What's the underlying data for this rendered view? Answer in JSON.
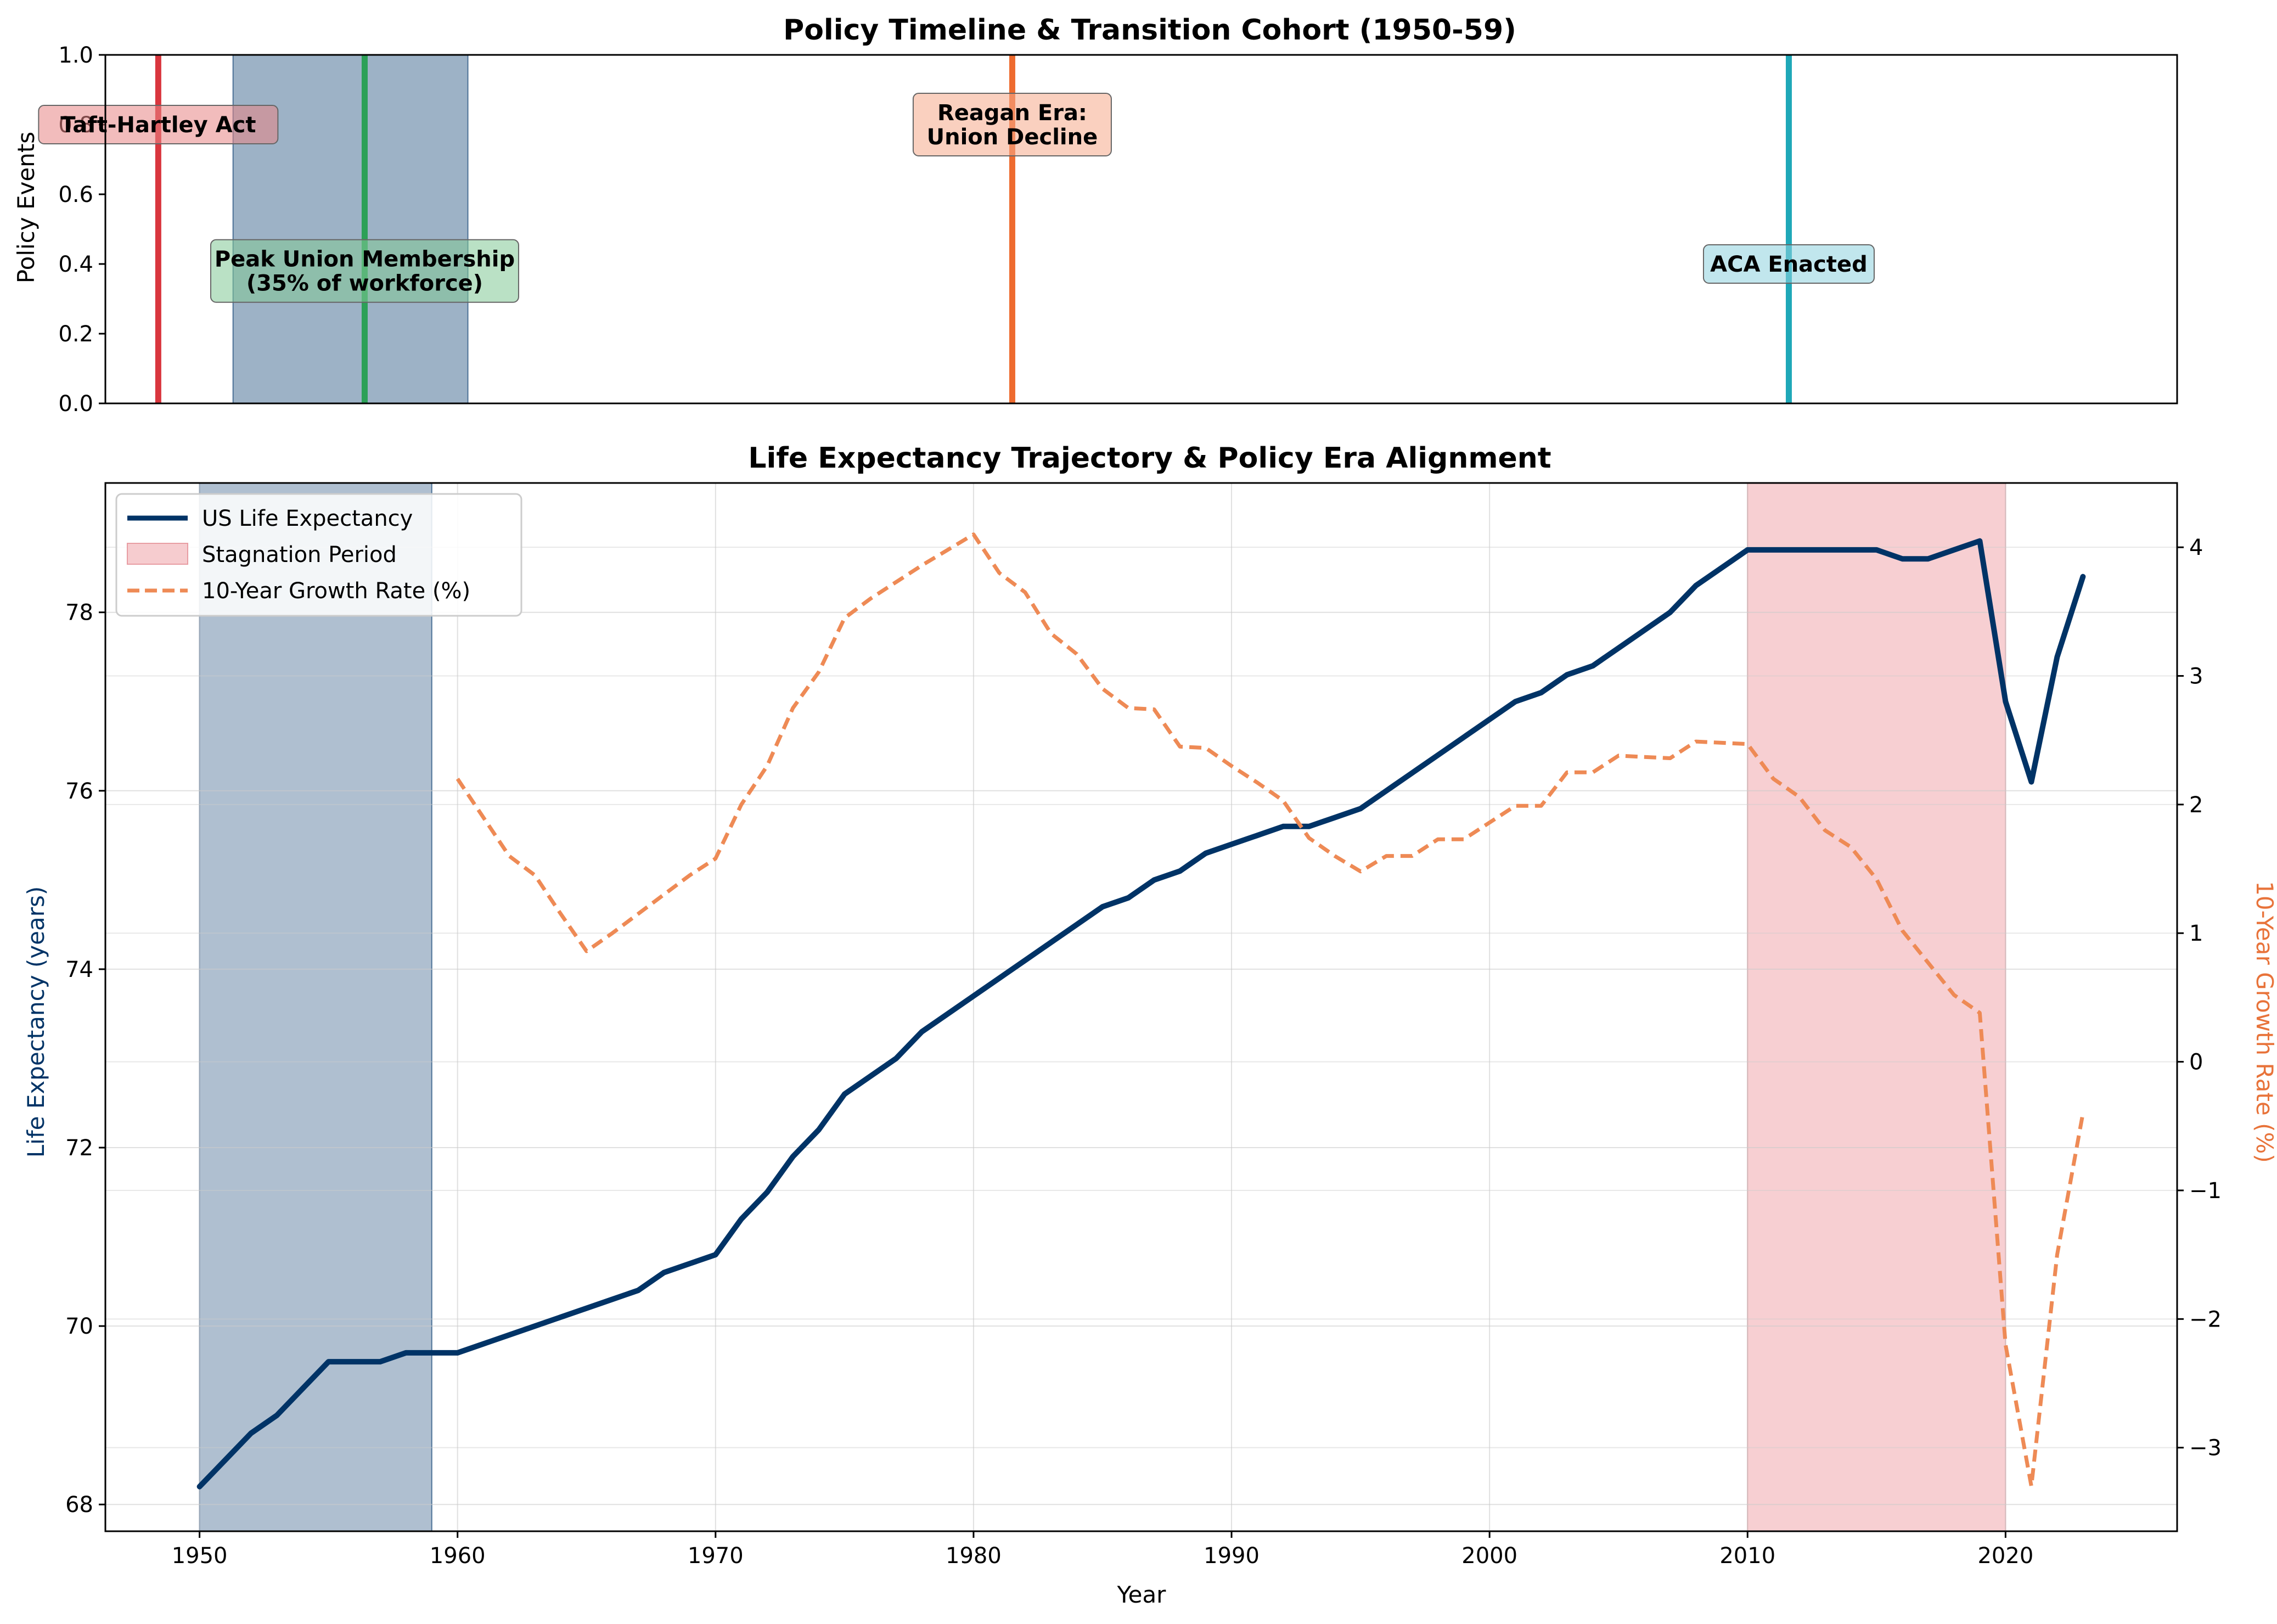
{
  "chart_data": [
    {
      "type": "timeline",
      "title": "Policy Timeline & Transition Cohort (1950-59)",
      "ylabel": "Policy Events",
      "xlim": [
        1946.35,
        2026.65
      ],
      "ylim": [
        0,
        1
      ],
      "yticks": [
        "0.0",
        "0.2",
        "0.4",
        "0.6",
        "0.8",
        "1.0"
      ],
      "cohort_band": {
        "x0": 1951.3,
        "x1": 1960.4,
        "color": "#4d7297"
      },
      "events": [
        {
          "year": 1948.4,
          "label": "Taft-Hartley Act",
          "y": 0.8,
          "color": "#d9363e",
          "box_color": "#e78585"
        },
        {
          "year": 1956.4,
          "label": "Peak Union Membership\n(35% of workforce)",
          "y": 0.38,
          "color": "#2ca057",
          "box_color": "#81c995"
        },
        {
          "year": 1981.5,
          "label": "Reagan Era:\nUnion Decline",
          "y": 0.8,
          "color": "#ee6b2f",
          "box_color": "#f6a98b"
        },
        {
          "year": 2011.6,
          "label": "ACA Enacted",
          "y": 0.4,
          "color": "#1fa8b8",
          "box_color": "#8ed2df"
        }
      ]
    },
    {
      "type": "line",
      "title": "Life Expectancy Trajectory & Policy Era Alignment",
      "xlabel": "Year",
      "ylabel": "Life Expectancy (years)",
      "y2label": "10-Year Growth Rate (%)",
      "xlim": [
        1946.35,
        2026.65
      ],
      "ylim": [
        67.7,
        79.45
      ],
      "y2lim": [
        -3.65,
        4.5
      ],
      "xticks": [
        1950,
        1960,
        1970,
        1980,
        1990,
        2000,
        2010,
        2020
      ],
      "yticks": [
        68,
        70,
        72,
        74,
        76,
        78
      ],
      "y2ticks": [
        -3,
        -2,
        -1,
        0,
        1,
        2,
        3,
        4
      ],
      "grid": true,
      "legend_position": "upper-left",
      "cohort_band": {
        "x0": 1950,
        "x1": 1959,
        "color": "#4d7297"
      },
      "stagnation_band": {
        "x0": 2010,
        "x1": 2020,
        "color": "#f4bfc3"
      },
      "legend": [
        "US Life Expectancy",
        "Stagnation Period",
        "10-Year Growth Rate (%)"
      ],
      "series": [
        {
          "name": "US Life Expectancy",
          "axis": "left",
          "color": "#003366",
          "style": "solid",
          "x": [
            1950,
            1951,
            1952,
            1953,
            1954,
            1955,
            1956,
            1957,
            1958,
            1959,
            1960,
            1961,
            1962,
            1963,
            1964,
            1965,
            1966,
            1967,
            1968,
            1969,
            1970,
            1971,
            1972,
            1973,
            1974,
            1975,
            1976,
            1977,
            1978,
            1979,
            1980,
            1981,
            1982,
            1983,
            1984,
            1985,
            1986,
            1987,
            1988,
            1989,
            1990,
            1991,
            1992,
            1993,
            1994,
            1995,
            1996,
            1997,
            1998,
            1999,
            2000,
            2001,
            2002,
            2003,
            2004,
            2005,
            2006,
            2007,
            2008,
            2009,
            2010,
            2011,
            2012,
            2013,
            2014,
            2015,
            2016,
            2017,
            2018,
            2019,
            2020,
            2021,
            2022,
            2023
          ],
          "y": [
            68.2,
            68.5,
            68.8,
            69.0,
            69.3,
            69.6,
            69.6,
            69.6,
            69.7,
            69.7,
            69.7,
            69.8,
            69.9,
            70.0,
            70.1,
            70.2,
            70.3,
            70.4,
            70.6,
            70.7,
            70.8,
            71.2,
            71.5,
            71.9,
            72.2,
            72.6,
            72.8,
            73.0,
            73.3,
            73.5,
            73.7,
            73.9,
            74.1,
            74.3,
            74.5,
            74.7,
            74.8,
            75.0,
            75.1,
            75.3,
            75.4,
            75.5,
            75.6,
            75.6,
            75.7,
            75.8,
            76.0,
            76.2,
            76.4,
            76.6,
            76.8,
            77.0,
            77.1,
            77.3,
            77.4,
            77.6,
            77.8,
            78.0,
            78.3,
            78.5,
            78.7,
            78.7,
            78.7,
            78.7,
            78.7,
            78.7,
            78.6,
            78.6,
            78.7,
            78.8,
            77.0,
            76.1,
            77.5,
            78.4
          ]
        },
        {
          "name": "10-Year Growth Rate (%)",
          "axis": "right",
          "color": "#ee8a55",
          "style": "dashed",
          "x": [
            1960,
            1961,
            1962,
            1963,
            1964,
            1965,
            1966,
            1967,
            1968,
            1969,
            1970,
            1971,
            1972,
            1973,
            1974,
            1975,
            1976,
            1977,
            1978,
            1979,
            1980,
            1981,
            1982,
            1983,
            1984,
            1985,
            1986,
            1987,
            1988,
            1989,
            1990,
            1991,
            1992,
            1993,
            1994,
            1995,
            1996,
            1997,
            1998,
            1999,
            2000,
            2001,
            2002,
            2003,
            2004,
            2005,
            2006,
            2007,
            2008,
            2009,
            2010,
            2011,
            2012,
            2013,
            2014,
            2015,
            2016,
            2017,
            2018,
            2019,
            2020,
            2021,
            2022,
            2023
          ],
          "y": [
            2.2,
            1.9,
            1.6,
            1.45,
            1.15,
            0.86,
            1.0,
            1.15,
            1.3,
            1.45,
            1.58,
            2.0,
            2.3,
            2.75,
            3.03,
            3.45,
            3.6,
            3.73,
            3.86,
            3.98,
            4.1,
            3.8,
            3.65,
            3.33,
            3.17,
            2.9,
            2.75,
            2.74,
            2.45,
            2.44,
            2.3,
            2.17,
            2.03,
            1.74,
            1.6,
            1.48,
            1.6,
            1.6,
            1.73,
            1.73,
            1.86,
            1.99,
            1.99,
            2.25,
            2.25,
            2.38,
            2.37,
            2.36,
            2.49,
            2.48,
            2.47,
            2.2,
            2.06,
            1.8,
            1.67,
            1.42,
            1.02,
            0.77,
            0.52,
            0.38,
            -2.2,
            -3.3,
            -1.5,
            -0.4
          ]
        }
      ]
    }
  ]
}
